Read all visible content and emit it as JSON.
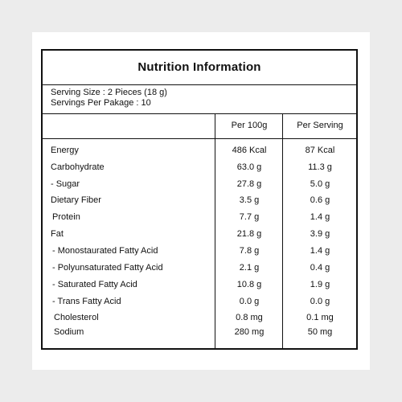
{
  "title": "Nutrition Information",
  "serving": {
    "size": "Serving Size : 2 Pieces (18 g)",
    "per_package": "Servings Per Pakage : 10"
  },
  "columns": {
    "per100": "Per 100g",
    "perServing": "Per Serving"
  },
  "rows": [
    {
      "name": "Energy",
      "per100": "486 Kcal",
      "perServing": "87 Kcal"
    },
    {
      "name": "Carbohydrate",
      "per100": "63.0 g",
      "perServing": "11.3 g"
    },
    {
      "name": "- Sugar",
      "per100": "27.8 g",
      "perServing": "5.0 g"
    },
    {
      "name": "Dietary Fiber",
      "per100": "3.5 g",
      "perServing": "0.6 g"
    },
    {
      "name": "Protein",
      "per100": "7.7 g",
      "perServing": "1.4 g"
    },
    {
      "name": "Fat",
      "per100": "21.8 g",
      "perServing": "3.9 g"
    },
    {
      "name": "- Monostaurated Fatty Acid",
      "per100": "7.8 g",
      "perServing": "1.4 g"
    },
    {
      "name": "- Polyunsaturated Fatty Acid",
      "per100": "2.1 g",
      "perServing": "0.4 g"
    },
    {
      "name": "- Saturated Fatty Acid",
      "per100": "10.8 g",
      "perServing": "1.9 g"
    },
    {
      "name": "- Trans Fatty Acid",
      "per100": "0.0 g",
      "perServing": "0.0 g"
    },
    {
      "name": "Cholesterol",
      "per100": "0.8 mg",
      "perServing": "0.1 mg"
    },
    {
      "name": "Sodium",
      "per100": "280 mg",
      "perServing": "50 mg"
    }
  ]
}
